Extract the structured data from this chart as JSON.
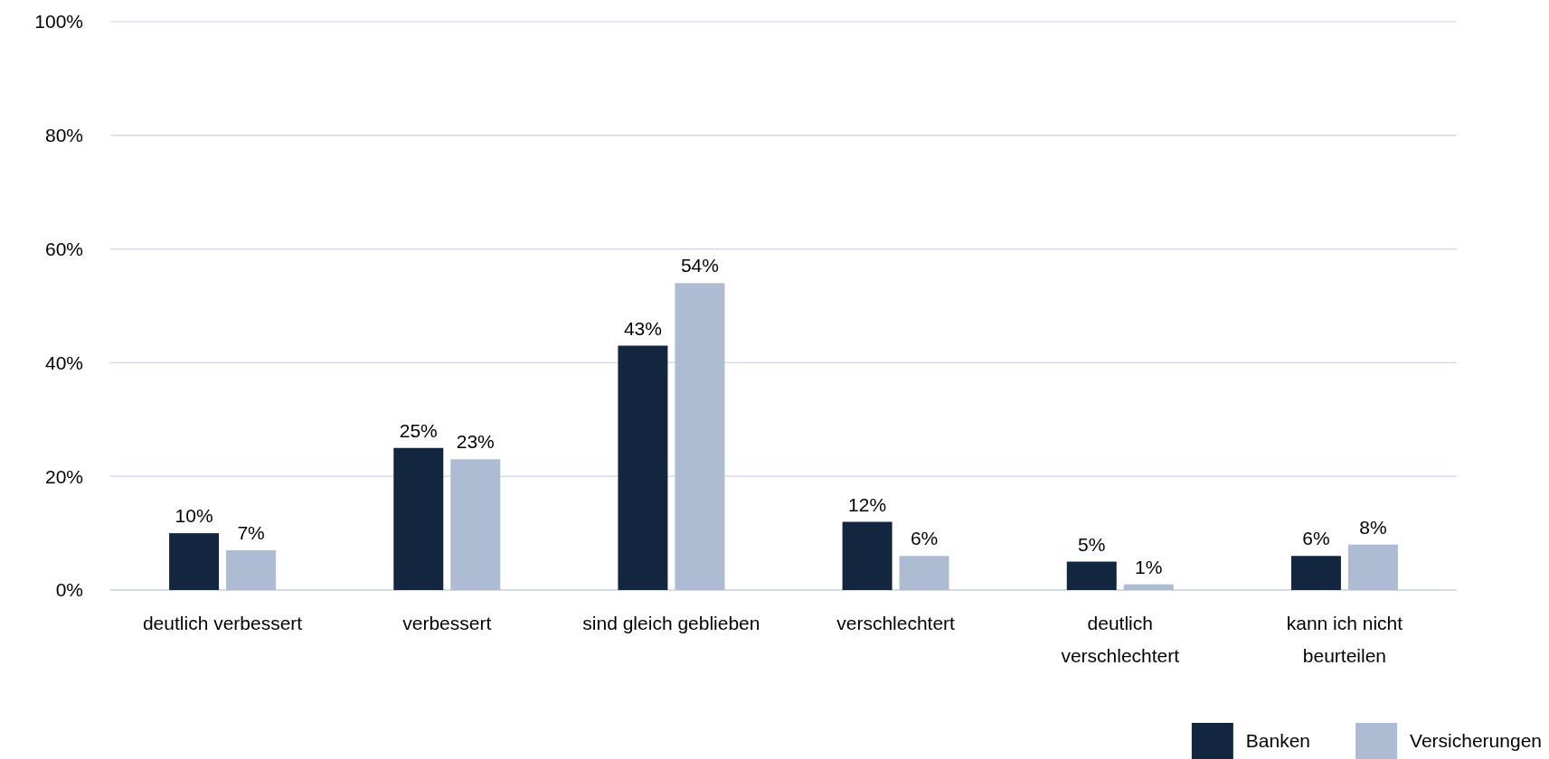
{
  "chart_data": {
    "type": "bar",
    "categories": [
      "deutlich verbessert",
      "verbessert",
      "sind gleich geblieben",
      "verschlechtert",
      "deutlich verschlechtert",
      "kann ich nicht beurteilen"
    ],
    "series": [
      {
        "name": "Banken",
        "color": "#13263f",
        "values": [
          10,
          25,
          43,
          12,
          5,
          6
        ],
        "value_labels": [
          "10%",
          "25%",
          "43%",
          "12%",
          "5%",
          "6%"
        ]
      },
      {
        "name": "Versicherungen",
        "color": "#adbcd3",
        "values": [
          7,
          23,
          54,
          6,
          1,
          8
        ],
        "value_labels": [
          "7%",
          "23%",
          "54%",
          "6%",
          "1%",
          "8%"
        ]
      }
    ],
    "ylim": [
      0,
      100
    ],
    "yticks": [
      {
        "value": 0,
        "label": "0%"
      },
      {
        "value": 20,
        "label": "20%"
      },
      {
        "value": 40,
        "label": "40%"
      },
      {
        "value": 60,
        "label": "60%"
      },
      {
        "value": 80,
        "label": "80%"
      },
      {
        "value": 100,
        "label": "100%"
      }
    ],
    "grid": "y",
    "legend": "bottom right"
  }
}
